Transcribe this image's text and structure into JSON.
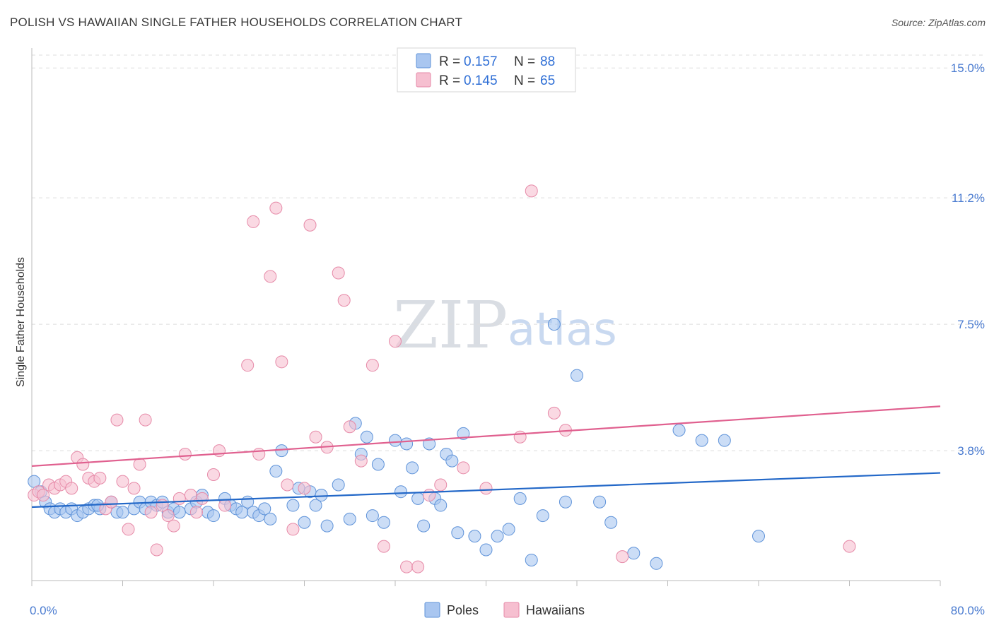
{
  "header": {
    "title": "POLISH VS HAWAIIAN SINGLE FATHER HOUSEHOLDS CORRELATION CHART",
    "source": "Source: ZipAtlas.com"
  },
  "watermark": {
    "zip": "ZIP",
    "atlas": "atlas"
  },
  "legend_top": {
    "rows": [
      {
        "r_label": "R =",
        "r_value": "0.157",
        "n_label": "N =",
        "n_value": "88"
      },
      {
        "r_label": "R =",
        "r_value": "0.145",
        "n_label": "N =",
        "n_value": "65"
      }
    ]
  },
  "legend_bottom": {
    "items": [
      "Poles",
      "Hawaiians"
    ]
  },
  "colors": {
    "poles_fill": "#a9c6f0",
    "poles_stroke": "#5f93d9",
    "poles_line": "#2368c8",
    "hawaiians_fill": "#f6bfd0",
    "hawaiians_stroke": "#e68aa8",
    "hawaiians_line": "#e0608f",
    "tick_text": "#4a7bd0",
    "grid": "#dddddd"
  },
  "chart_data": {
    "type": "scatter",
    "title": "POLISH VS HAWAIIAN SINGLE FATHER HOUSEHOLDS CORRELATION CHART",
    "xlabel": "",
    "ylabel": "Single Father Households",
    "xlim": [
      0,
      80
    ],
    "ylim": [
      0,
      15.5
    ],
    "x_tick_labels": [
      "0.0%",
      "80.0%"
    ],
    "y_ticks": [
      3.8,
      7.5,
      11.2,
      15.0
    ],
    "y_tick_labels": [
      "3.8%",
      "7.5%",
      "11.2%",
      "15.0%"
    ],
    "grid": "horizontal dashed",
    "legend": "top-center",
    "series": [
      {
        "name": "Poles",
        "r": 0.157,
        "n": 88,
        "trend": [
          [
            0,
            2.15
          ],
          [
            80,
            3.15
          ]
        ],
        "points": [
          [
            0.2,
            2.9
          ],
          [
            0.8,
            2.6
          ],
          [
            1.2,
            2.3
          ],
          [
            1.6,
            2.1
          ],
          [
            2.0,
            2.0
          ],
          [
            2.5,
            2.1
          ],
          [
            3.0,
            2.0
          ],
          [
            3.5,
            2.1
          ],
          [
            4.0,
            1.9
          ],
          [
            4.5,
            2.0
          ],
          [
            5.0,
            2.1
          ],
          [
            5.5,
            2.2
          ],
          [
            6.0,
            2.1
          ],
          [
            7.0,
            2.3
          ],
          [
            7.5,
            2.0
          ],
          [
            8.0,
            2.0
          ],
          [
            9.0,
            2.1
          ],
          [
            9.5,
            2.3
          ],
          [
            10.0,
            2.1
          ],
          [
            10.5,
            2.3
          ],
          [
            11.0,
            2.2
          ],
          [
            11.5,
            2.3
          ],
          [
            12.0,
            2.0
          ],
          [
            12.5,
            2.1
          ],
          [
            13.0,
            2.0
          ],
          [
            14.0,
            2.1
          ],
          [
            14.5,
            2.3
          ],
          [
            15.0,
            2.5
          ],
          [
            15.5,
            2.0
          ],
          [
            16.0,
            1.9
          ],
          [
            17.0,
            2.4
          ],
          [
            17.5,
            2.2
          ],
          [
            18.0,
            2.1
          ],
          [
            18.5,
            2.0
          ],
          [
            19.0,
            2.3
          ],
          [
            19.5,
            2.0
          ],
          [
            20.0,
            1.9
          ],
          [
            20.5,
            2.1
          ],
          [
            21.0,
            1.8
          ],
          [
            21.5,
            3.2
          ],
          [
            22.0,
            3.8
          ],
          [
            23.0,
            2.2
          ],
          [
            23.5,
            2.7
          ],
          [
            24.0,
            1.7
          ],
          [
            24.5,
            2.6
          ],
          [
            25.0,
            2.2
          ],
          [
            25.5,
            2.5
          ],
          [
            26.0,
            1.6
          ],
          [
            27.0,
            2.8
          ],
          [
            28.0,
            1.8
          ],
          [
            28.5,
            4.6
          ],
          [
            29.0,
            3.7
          ],
          [
            29.5,
            4.2
          ],
          [
            30.0,
            1.9
          ],
          [
            30.5,
            3.4
          ],
          [
            31.0,
            1.7
          ],
          [
            32.0,
            4.1
          ],
          [
            32.5,
            2.6
          ],
          [
            33.0,
            4.0
          ],
          [
            33.5,
            3.3
          ],
          [
            34.0,
            2.4
          ],
          [
            34.5,
            1.6
          ],
          [
            35.0,
            4.0
          ],
          [
            35.5,
            2.4
          ],
          [
            36.0,
            2.2
          ],
          [
            36.5,
            3.7
          ],
          [
            37.0,
            3.5
          ],
          [
            37.5,
            1.4
          ],
          [
            38.0,
            4.3
          ],
          [
            39.0,
            1.3
          ],
          [
            40.0,
            0.9
          ],
          [
            41.0,
            1.3
          ],
          [
            42.0,
            1.5
          ],
          [
            43.0,
            2.4
          ],
          [
            44.0,
            0.6
          ],
          [
            45.0,
            1.9
          ],
          [
            46.0,
            7.5
          ],
          [
            47.0,
            2.3
          ],
          [
            48.0,
            6.0
          ],
          [
            50.0,
            2.3
          ],
          [
            51.0,
            1.7
          ],
          [
            53.0,
            0.8
          ],
          [
            55.0,
            0.5
          ],
          [
            57.0,
            4.4
          ],
          [
            59.0,
            4.1
          ],
          [
            61.0,
            4.1
          ],
          [
            64.0,
            1.3
          ],
          [
            5.8,
            2.2
          ]
        ]
      },
      {
        "name": "Hawaiians",
        "r": 0.145,
        "n": 65,
        "trend": [
          [
            0,
            3.35
          ],
          [
            80,
            5.1
          ]
        ],
        "points": [
          [
            0.2,
            2.5
          ],
          [
            0.6,
            2.6
          ],
          [
            1.0,
            2.5
          ],
          [
            1.5,
            2.8
          ],
          [
            2.0,
            2.7
          ],
          [
            2.5,
            2.8
          ],
          [
            3.0,
            2.9
          ],
          [
            3.5,
            2.7
          ],
          [
            4.0,
            3.6
          ],
          [
            4.5,
            3.4
          ],
          [
            5.0,
            3.0
          ],
          [
            5.5,
            2.9
          ],
          [
            6.0,
            3.0
          ],
          [
            6.5,
            2.1
          ],
          [
            7.0,
            2.3
          ],
          [
            7.5,
            4.7
          ],
          [
            8.0,
            2.9
          ],
          [
            8.5,
            1.5
          ],
          [
            9.0,
            2.7
          ],
          [
            9.5,
            3.4
          ],
          [
            10.0,
            4.7
          ],
          [
            10.5,
            2.0
          ],
          [
            11.0,
            0.9
          ],
          [
            11.5,
            2.2
          ],
          [
            12.0,
            1.9
          ],
          [
            12.5,
            1.6
          ],
          [
            13.0,
            2.4
          ],
          [
            13.5,
            3.7
          ],
          [
            14.0,
            2.5
          ],
          [
            14.5,
            2.0
          ],
          [
            15.0,
            2.4
          ],
          [
            16.0,
            3.1
          ],
          [
            16.5,
            3.8
          ],
          [
            17.0,
            2.2
          ],
          [
            19.0,
            6.3
          ],
          [
            19.5,
            10.5
          ],
          [
            20.0,
            3.7
          ],
          [
            21.0,
            8.9
          ],
          [
            21.5,
            10.9
          ],
          [
            22.0,
            6.4
          ],
          [
            22.5,
            2.8
          ],
          [
            23.0,
            1.5
          ],
          [
            24.0,
            2.7
          ],
          [
            24.5,
            10.4
          ],
          [
            25.0,
            4.2
          ],
          [
            26.0,
            3.9
          ],
          [
            27.0,
            9.0
          ],
          [
            27.5,
            8.2
          ],
          [
            28.0,
            4.5
          ],
          [
            29.0,
            3.5
          ],
          [
            30.0,
            6.3
          ],
          [
            31.0,
            1.0
          ],
          [
            32.0,
            7.0
          ],
          [
            33.0,
            0.4
          ],
          [
            34.0,
            0.4
          ],
          [
            35.0,
            2.5
          ],
          [
            36.0,
            2.8
          ],
          [
            38.0,
            3.3
          ],
          [
            40.0,
            2.7
          ],
          [
            43.0,
            4.2
          ],
          [
            44.0,
            11.4
          ],
          [
            46.0,
            4.9
          ],
          [
            47.0,
            4.4
          ],
          [
            52.0,
            0.7
          ],
          [
            72.0,
            1.0
          ]
        ]
      }
    ]
  }
}
